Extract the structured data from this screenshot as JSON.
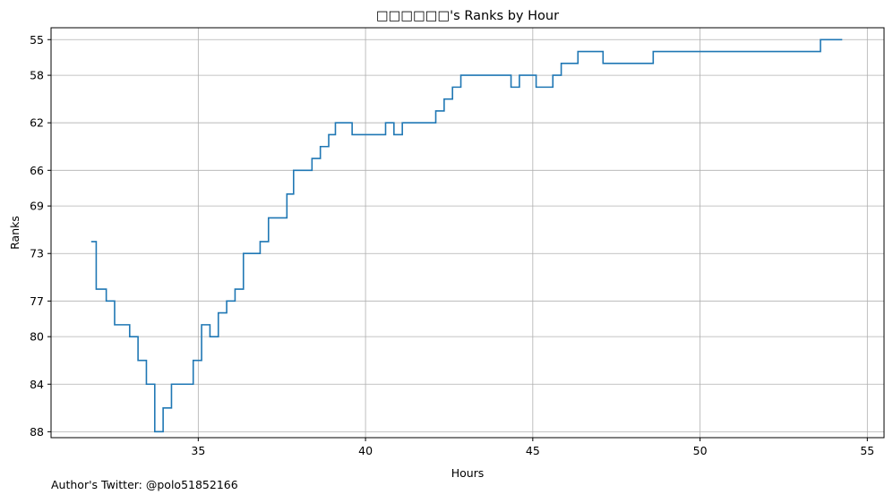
{
  "chart_data": {
    "type": "line",
    "drawstyle": "steps-post",
    "title": "□□□□□□'s Ranks by Hour",
    "xlabel": "Hours",
    "ylabel": "Ranks",
    "xlim": [
      30.6,
      55.5
    ],
    "ylim": [
      54.0,
      88.5
    ],
    "y_inverted": true,
    "grid": true,
    "x_ticks": [
      35,
      40,
      45,
      50,
      55
    ],
    "y_ticks": [
      55,
      58,
      62,
      66,
      69,
      73,
      77,
      80,
      84,
      88
    ],
    "series": [
      {
        "color": "#1f77b4",
        "x": [
          31.8,
          31.95,
          32.25,
          32.5,
          32.95,
          33.2,
          33.45,
          33.7,
          33.95,
          34.2,
          34.85,
          35.1,
          35.35,
          35.6,
          35.85,
          36.1,
          36.35,
          36.85,
          37.1,
          37.65,
          37.85,
          38.4,
          38.65,
          38.9,
          39.1,
          39.6,
          40.6,
          40.85,
          41.1,
          42.1,
          42.35,
          42.6,
          42.85,
          43.35,
          44.35,
          44.6,
          45.1,
          45.6,
          45.85,
          46.35,
          47.1,
          48.6,
          53.6,
          54.25
        ],
        "y": [
          72.0,
          76.0,
          77.0,
          79.0,
          80.0,
          82.0,
          84.0,
          88.0,
          86.0,
          84.0,
          82.0,
          79.0,
          80.0,
          78.0,
          77.0,
          76.0,
          73.0,
          72.0,
          70.0,
          68.0,
          66.0,
          65.0,
          64.0,
          63.0,
          62.0,
          63.0,
          62.0,
          63.0,
          62.0,
          61.0,
          60.0,
          59.0,
          58.0,
          58.0,
          59.0,
          58.0,
          59.0,
          58.0,
          57.0,
          56.0,
          57.0,
          56.0,
          55.0,
          55.0
        ]
      }
    ]
  },
  "footer": {
    "author": "Author's Twitter: @polo51852166"
  }
}
